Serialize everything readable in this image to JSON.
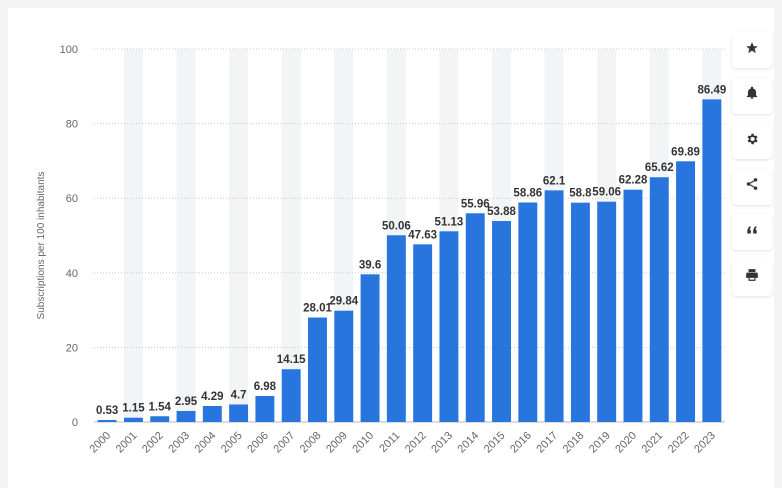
{
  "sidebar": {
    "buttons": [
      {
        "icon": "star-icon",
        "label": "Favorite"
      },
      {
        "icon": "bell-icon",
        "label": "Notifications"
      },
      {
        "icon": "gear-icon",
        "label": "Settings"
      },
      {
        "icon": "share-icon",
        "label": "Share"
      },
      {
        "icon": "quote-icon",
        "label": "Cite"
      },
      {
        "icon": "print-icon",
        "label": "Print"
      }
    ]
  },
  "colors": {
    "bar": "#2876dd",
    "stripe": "#f3f4f6",
    "grid": "#c8c8c8"
  },
  "chart_data": {
    "type": "bar",
    "title": "",
    "xlabel": "",
    "ylabel": "Subscriptions per 100 inhabitants",
    "ylim": [
      0,
      100
    ],
    "yticks": [
      0,
      20,
      40,
      60,
      80,
      100
    ],
    "grid": true,
    "categories": [
      "2000",
      "2001",
      "2002",
      "2003",
      "2004",
      "2005",
      "2006",
      "2007",
      "2008",
      "2009",
      "2010",
      "2011",
      "2012",
      "2013",
      "2014",
      "2015",
      "2016",
      "2017",
      "2018",
      "2019",
      "2020",
      "2021",
      "2022",
      "2023"
    ],
    "values": [
      0.53,
      1.15,
      1.54,
      2.95,
      4.29,
      4.7,
      6.98,
      14.15,
      28.01,
      29.84,
      39.6,
      50.06,
      47.63,
      51.13,
      55.96,
      53.88,
      58.86,
      62.1,
      58.8,
      59.06,
      62.28,
      65.62,
      69.89,
      86.49
    ],
    "value_labels": [
      "0.53",
      "1.15",
      "1.54",
      "2.95",
      "4.29",
      "4.7",
      "6.98",
      "14.15",
      "28.01",
      "29.84",
      "39.6",
      "50.06",
      "47.63",
      "51.13",
      "55.96",
      "53.88",
      "58.86",
      "62.1",
      "58.8",
      "59.06",
      "62.28",
      "65.62",
      "69.89",
      "86.49"
    ]
  }
}
